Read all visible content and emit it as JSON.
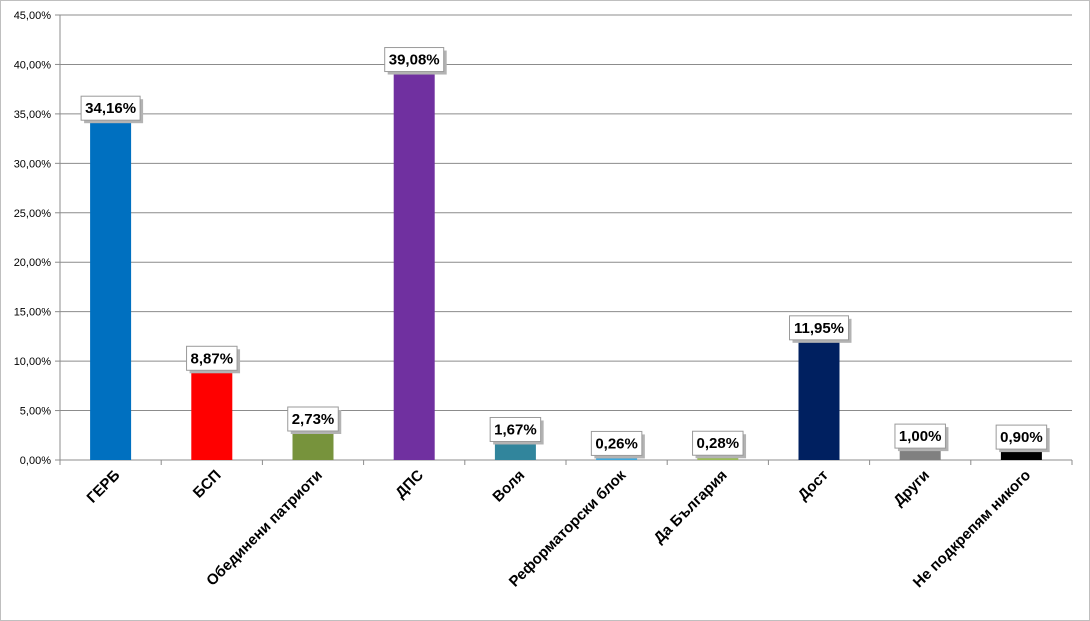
{
  "chart_data": {
    "type": "bar",
    "categories": [
      "ГЕРБ",
      "БСП",
      "Обединени патриоти",
      "ДПС",
      "Воля",
      "Реформаторски блок",
      "Да България",
      "Дост",
      "Други",
      "Не подкрепям никого"
    ],
    "values": [
      34.16,
      8.87,
      2.73,
      39.08,
      1.67,
      0.26,
      0.28,
      11.95,
      1.0,
      0.9
    ],
    "data_labels": [
      "34,16%",
      "8,87%",
      "2,73%",
      "39,08%",
      "1,67%",
      "0,26%",
      "0,28%",
      "11,95%",
      "1,00%",
      "0,90%"
    ],
    "colors": [
      "#0070C0",
      "#FF0000",
      "#77933C",
      "#7030A0",
      "#31859C",
      "#3FA8DC",
      "#9BBB59",
      "#002060",
      "#808080",
      "#000000"
    ],
    "ylim": [
      0,
      45
    ],
    "y_ticks": [
      0,
      5,
      10,
      15,
      20,
      25,
      30,
      35,
      40,
      45
    ],
    "y_tick_labels": [
      "0,00%",
      "5,00%",
      "10,00%",
      "15,00%",
      "20,00%",
      "25,00%",
      "30,00%",
      "35,00%",
      "40,00%",
      "45,00%"
    ],
    "grid": true,
    "legend": "none"
  }
}
